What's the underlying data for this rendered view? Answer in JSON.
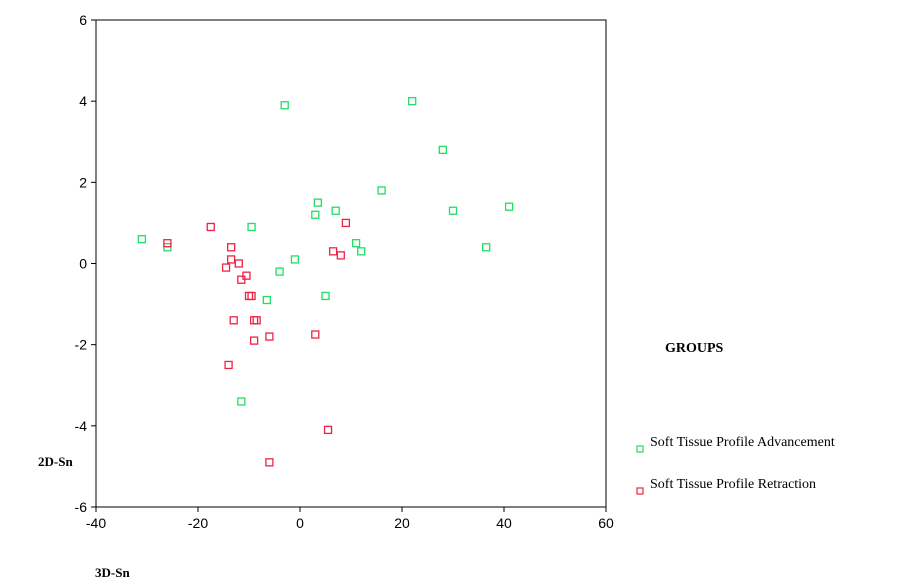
{
  "chart_data": {
    "type": "scatter",
    "xlabel": "3D-Sn",
    "ylabel": "2D-Sn",
    "xlim": [
      -40,
      60
    ],
    "ylim": [
      -6,
      6
    ],
    "xticks": [
      -40,
      -20,
      0,
      20,
      40,
      60
    ],
    "yticks": [
      -6,
      -4,
      -2,
      0,
      2,
      4,
      6
    ],
    "grid": false,
    "legend_title": "GROUPS",
    "legend_position": "right",
    "series": [
      {
        "name": "Soft Tissue Profile Advancement",
        "color": "#22dd66",
        "marker": "square-open",
        "points": [
          [
            -31,
            0.6
          ],
          [
            -26,
            0.4
          ],
          [
            -3,
            3.9
          ],
          [
            22,
            4.0
          ],
          [
            28,
            2.8
          ],
          [
            16,
            1.8
          ],
          [
            3.5,
            1.5
          ],
          [
            3,
            1.2
          ],
          [
            7,
            1.3
          ],
          [
            30,
            1.3
          ],
          [
            41,
            1.4
          ],
          [
            -9.5,
            0.9
          ],
          [
            11,
            0.5
          ],
          [
            12,
            0.3
          ],
          [
            36.5,
            0.4
          ],
          [
            -1,
            0.1
          ],
          [
            -4,
            -0.2
          ],
          [
            -6.5,
            -0.9
          ],
          [
            5,
            -0.8
          ],
          [
            -11.5,
            -3.4
          ]
        ]
      },
      {
        "name": "Soft Tissue Profile Retraction",
        "color": "#ee2244",
        "marker": "square-open",
        "points": [
          [
            -26,
            0.5
          ],
          [
            -17.5,
            0.9
          ],
          [
            -13.5,
            0.4
          ],
          [
            -13.5,
            0.1
          ],
          [
            -12,
            0.0
          ],
          [
            -14.5,
            -0.1
          ],
          [
            -10.5,
            -0.3
          ],
          [
            -11.5,
            -0.4
          ],
          [
            -10,
            -0.8
          ],
          [
            -9.5,
            -0.8
          ],
          [
            -13,
            -1.4
          ],
          [
            -9,
            -1.4
          ],
          [
            -8.5,
            -1.4
          ],
          [
            -9,
            -1.9
          ],
          [
            -6,
            -1.8
          ],
          [
            3,
            -1.75
          ],
          [
            -14,
            -2.5
          ],
          [
            6.5,
            0.3
          ],
          [
            8,
            0.2
          ],
          [
            9,
            1.0
          ],
          [
            5.5,
            -4.1
          ],
          [
            -6,
            -4.9
          ]
        ]
      }
    ]
  }
}
